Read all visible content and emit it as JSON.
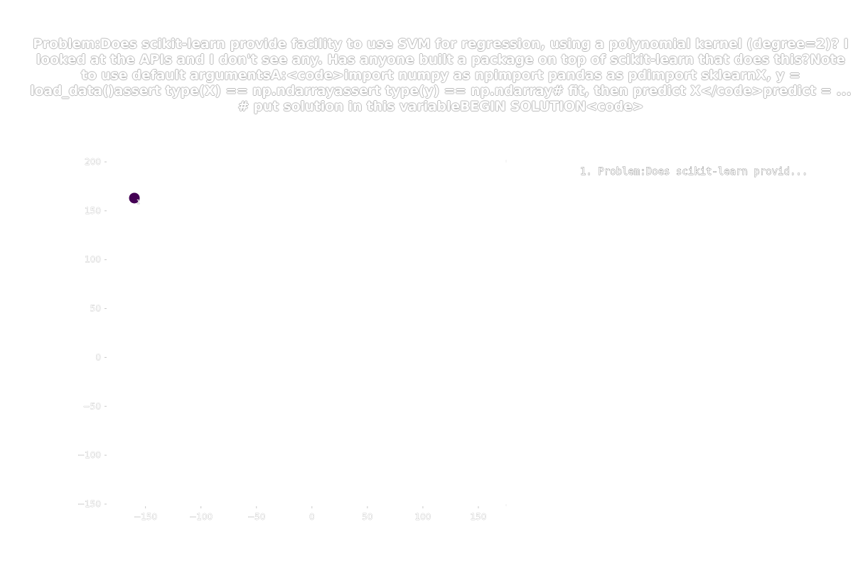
{
  "chart_data": {
    "type": "scatter",
    "title": "Problem:Does scikit-learn provide facility to use SVM for regression, using a polynomial kernel (degree=2)? I looked at the APIs and I don't see any. Has anyone built a package on top of scikit-learn that does this?Note to use default argumentsA:<code>import numpy as npimport pandas as pdimport sklearnX, y = load_data()assert type(X) == np.ndarrayassert type(y) == np.ndarray# fit, then predict X</code>predict = ... # put solution in this variableBEGIN SOLUTION<code>",
    "xlabel": "",
    "ylabel": "",
    "xlim": [
      -185,
      175
    ],
    "ylim": [
      -150,
      200
    ],
    "x_ticks": [
      "−150",
      "−100",
      "−50",
      "0",
      "50",
      "100",
      "150"
    ],
    "x_tick_values": [
      -150,
      -100,
      -50,
      0,
      50,
      100,
      150
    ],
    "y_ticks": [
      "200",
      "150",
      "100",
      "50",
      "0",
      "−50",
      "−100",
      "−150"
    ],
    "y_tick_values": [
      200,
      150,
      100,
      50,
      0,
      -50,
      -100,
      -150
    ],
    "grid": false,
    "legend_position": "top-right",
    "series": [
      {
        "name": "1. Problem:Does scikit-learn provid...",
        "color": "#440154",
        "points": [
          {
            "x": -160,
            "y": 163,
            "label": "1"
          }
        ]
      }
    ]
  }
}
